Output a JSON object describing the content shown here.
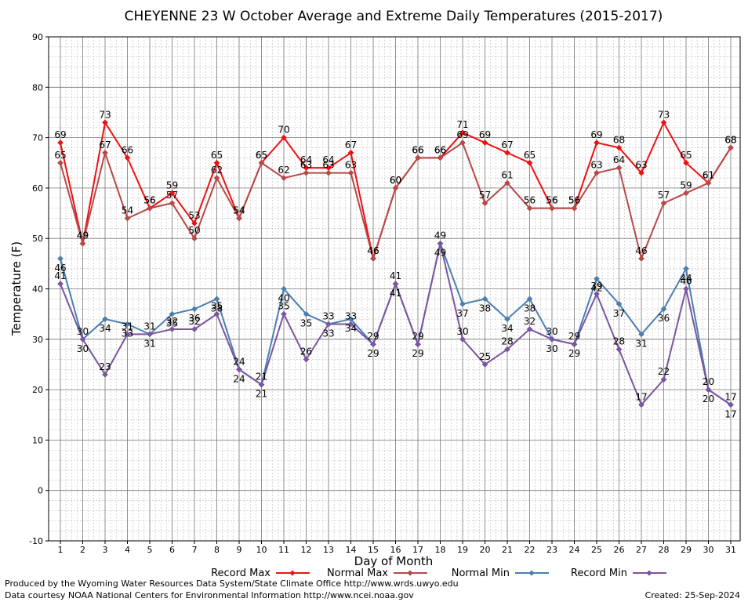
{
  "chart_data": {
    "type": "line",
    "title": "CHEYENNE 23 W October Average and Extreme Daily Temperatures (2015-2017)",
    "xlabel": "Day of Month",
    "ylabel": "Temperature (F)",
    "ylim": [
      -10,
      90
    ],
    "yticks": [
      -10,
      0,
      10,
      20,
      30,
      40,
      50,
      60,
      70,
      80,
      90
    ],
    "x": [
      1,
      2,
      3,
      4,
      5,
      6,
      7,
      8,
      9,
      10,
      11,
      12,
      13,
      14,
      15,
      16,
      17,
      18,
      19,
      20,
      21,
      22,
      23,
      24,
      25,
      26,
      27,
      28,
      29,
      30,
      31
    ],
    "grid": true,
    "legend_position": "bottom",
    "series": [
      {
        "name": "Record Max",
        "color": "#ee1111",
        "values": [
          69,
          49,
          73,
          66,
          56,
          59,
          53,
          65,
          54,
          65,
          70,
          64,
          64,
          67,
          46,
          60,
          66,
          66,
          71,
          69,
          67,
          65,
          56,
          56,
          69,
          68,
          63,
          73,
          65,
          61,
          68
        ]
      },
      {
        "name": "Normal Max",
        "color": "#b84848",
        "values": [
          65,
          49,
          67,
          54,
          56,
          57,
          50,
          62,
          54,
          65,
          62,
          63,
          63,
          63,
          46,
          60,
          66,
          66,
          69,
          57,
          61,
          56,
          56,
          56,
          63,
          64,
          46,
          57,
          59,
          61,
          68
        ]
      },
      {
        "name": "Normal Min",
        "color": "#4a7fb0",
        "values": [
          46,
          30,
          34,
          33,
          31,
          35,
          36,
          38,
          24,
          21,
          40,
          35,
          33,
          34,
          29,
          41,
          29,
          49,
          37,
          38,
          34,
          38,
          30,
          29,
          42,
          37,
          31,
          36,
          44,
          20,
          17
        ]
      },
      {
        "name": "Record Min",
        "color": "#7a55a0",
        "values": [
          41,
          30,
          23,
          31,
          31,
          32,
          32,
          35,
          24,
          21,
          35,
          26,
          33,
          33,
          29,
          41,
          29,
          49,
          30,
          25,
          28,
          32,
          30,
          29,
          39,
          28,
          17,
          22,
          40,
          20,
          17
        ]
      }
    ]
  },
  "footer": {
    "line1": "Produced by the Wyoming Water Resources Data System/State Climate Office http://www.wrds.uwyo.edu",
    "line2": "Data courtesy NOAA National Centers for Environmental Information http://www.ncei.noaa.gov",
    "created": "Created:  25-Sep-2024"
  }
}
